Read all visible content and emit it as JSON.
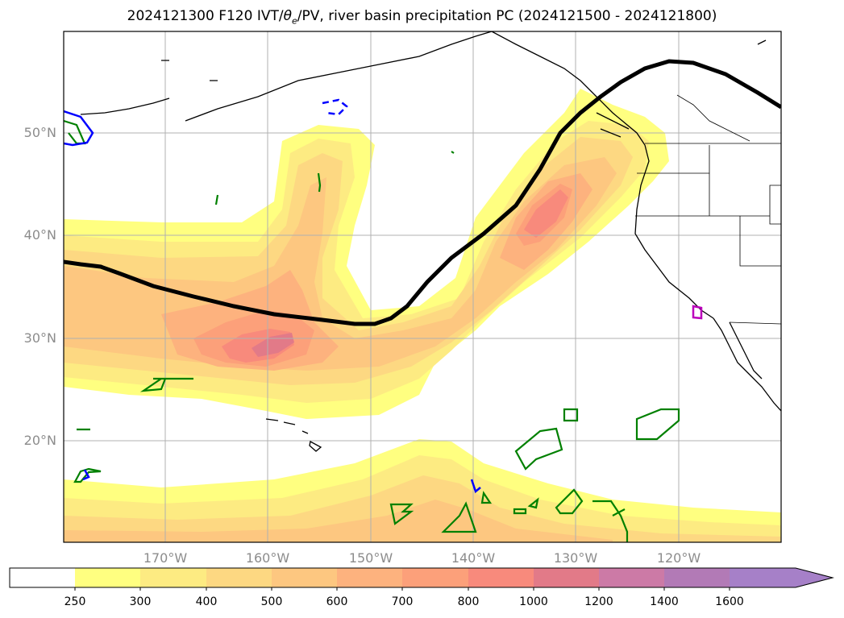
{
  "title": {
    "prefix": "2024121300 F120 IVT/",
    "theta": "θ",
    "theta_sub": "e",
    "suffix": "/PV, river basin precipitation PC (2024121500 - 2024121800)"
  },
  "axes": {
    "lat_labels": [
      "50°N",
      "40°N",
      "30°N",
      "20°N"
    ],
    "lon_labels": [
      "170°W",
      "160°W",
      "150°W",
      "140°W",
      "130°W",
      "120°W"
    ],
    "lat_extent": [
      10.2,
      59.6
    ],
    "lon_extent": [
      -179.8,
      -110
    ],
    "grid": true
  },
  "colorbar": {
    "levels": [
      "250",
      "300",
      "400",
      "500",
      "600",
      "700",
      "800",
      "1000",
      "1200",
      "1400",
      "1600"
    ],
    "colors": [
      "#ffffff",
      "#ffff80",
      "#fdeb82",
      "#fdd882",
      "#fdc780",
      "#fdb27e",
      "#fca07a",
      "#f88a7c",
      "#e27a88",
      "#cc7aa6",
      "#b27ab6",
      "#a680c8",
      "#a680c8"
    ],
    "extend": "max"
  },
  "colors": {
    "pv_contour": "#000000",
    "green_contour": "#008000",
    "blue_contour": "#0000ff",
    "magenta_contour": "#bb00bb",
    "coast": "#000000",
    "grid": "#b0b0b0"
  }
}
